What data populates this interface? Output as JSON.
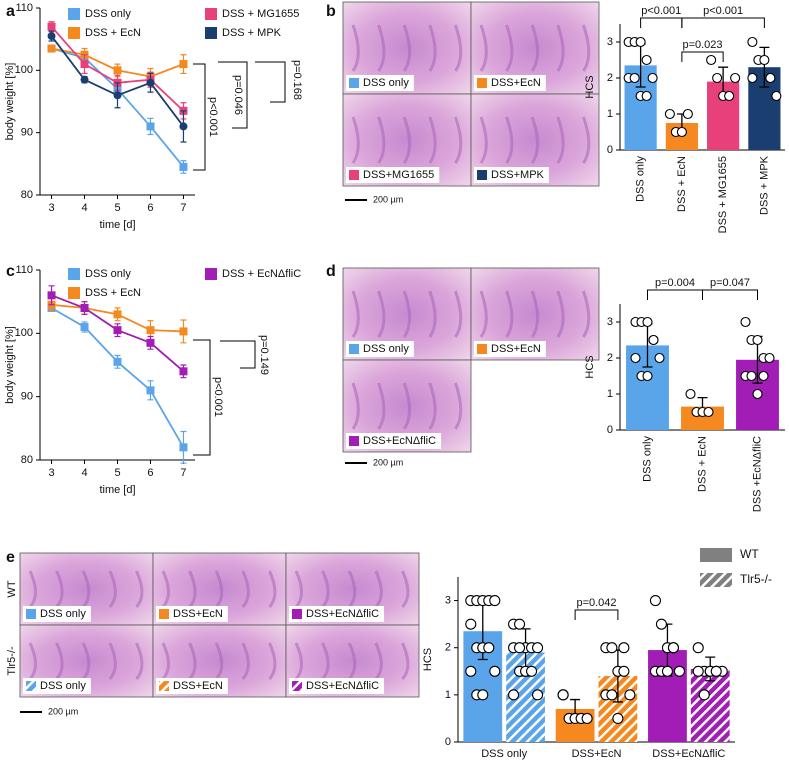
{
  "figure": {
    "panels": [
      "a",
      "b",
      "c",
      "d",
      "e"
    ],
    "micrographs": [
      {
        "tiles": [
          {
            "label": "DSS only",
            "color": "#5aa5ea"
          },
          {
            "label": "DSS+EcN",
            "color": "#f5891f"
          },
          {
            "label": "DSS+MG1655",
            "color": "#e8407a"
          },
          {
            "label": "DSS+MPK",
            "color": "#1a3e6f"
          }
        ],
        "scale": "200 µm"
      },
      {
        "tiles": [
          {
            "label": "DSS only",
            "color": "#5aa5ea"
          },
          {
            "label": "DSS+EcN",
            "color": "#f5891f"
          },
          {
            "label": "DSS+EcNΔfliC",
            "color": "#a11db5"
          }
        ],
        "scale": "200 µm"
      },
      {
        "rows": [
          "WT",
          "Tlr5-/-"
        ],
        "tiles": [
          {
            "label": "DSS only",
            "color": "#5aa5ea"
          },
          {
            "label": "DSS+EcN",
            "color": "#f5891f"
          },
          {
            "label": "DSS+EcNΔfliC",
            "color": "#a11db5"
          },
          {
            "label": "DSS only",
            "color": "#5aa5ea",
            "hatch": true
          },
          {
            "label": "DSS+EcN",
            "color": "#f5891f",
            "hatch": true
          },
          {
            "label": "DSS+EcNΔfliC",
            "color": "#a11db5",
            "hatch": true
          }
        ],
        "scale": "200 µm"
      }
    ]
  },
  "chart_data": [
    {
      "type": "line",
      "xlabel": "time [d]",
      "ylabel": "body weight [%]",
      "x": [
        3,
        4,
        5,
        6,
        7
      ],
      "xlim": [
        2.65,
        7.35
      ],
      "xticks": [
        3,
        4,
        5,
        6,
        7
      ],
      "ylim": [
        80,
        110
      ],
      "yticks": [
        80,
        90,
        100,
        110
      ],
      "series": [
        {
          "name": "DSS only",
          "color": "#5aa5ea",
          "marker": "square",
          "values": [
            103.5,
            102,
            97,
            91,
            84.5
          ],
          "errors": [
            0.5,
            0.8,
            1,
            1.3,
            1
          ]
        },
        {
          "name": "DSS + EcN",
          "color": "#f5891f",
          "marker": "square",
          "values": [
            103.5,
            102.5,
            100,
            99,
            101
          ],
          "errors": [
            0.5,
            1,
            1,
            1.3,
            1.5
          ]
        },
        {
          "name": "DSS + MG1655",
          "color": "#e8407a",
          "marker": "square",
          "values": [
            107,
            101,
            98,
            98.5,
            93.5
          ],
          "errors": [
            0.8,
            1.5,
            1.2,
            1.2,
            1.3
          ]
        },
        {
          "name": "DSS + MPK",
          "color": "#1a3e6f",
          "marker": "circle",
          "values": [
            105.5,
            98.5,
            96,
            98,
            91
          ],
          "errors": [
            0.8,
            0.5,
            2,
            1.5,
            2.5
          ]
        }
      ],
      "annotations": [
        "p<0.001",
        "p=0.046",
        "p=0.168"
      ]
    },
    {
      "type": "bar",
      "ylabel": "HCS",
      "categories": [
        "DSS only",
        "DSS + EcN",
        "DSS + MG1655",
        "DSS + MPK"
      ],
      "ylim": [
        0,
        3.5
      ],
      "yticks": [
        0,
        1,
        2,
        3
      ],
      "series": [
        {
          "colors": [
            "#5aa5ea",
            "#f5891f",
            "#e8407a",
            "#1a3e6f"
          ],
          "values": [
            2.35,
            0.75,
            1.9,
            2.3
          ],
          "errors": [
            0.6,
            0.25,
            0.4,
            0.55
          ],
          "points": [
            [
              3,
              3,
              3,
              2.5,
              2,
              2,
              2,
              1.5,
              1.5
            ],
            [
              1,
              0.5,
              0.5,
              1
            ],
            [
              2.5,
              2,
              1.5,
              1.5,
              2
            ],
            [
              3,
              2.5,
              2.5,
              2,
              1.5,
              2
            ]
          ]
        }
      ],
      "annotations": [
        "p<0.001",
        "p=0.023",
        "p<0.001"
      ]
    },
    {
      "type": "line",
      "xlabel": "time [d]",
      "ylabel": "body weight [%]",
      "x": [
        3,
        4,
        5,
        6,
        7
      ],
      "xlim": [
        2.65,
        7.35
      ],
      "xticks": [
        3,
        4,
        5,
        6,
        7
      ],
      "ylim": [
        80,
        110
      ],
      "yticks": [
        80,
        90,
        100,
        110
      ],
      "series": [
        {
          "name": "DSS only",
          "color": "#5aa5ea",
          "marker": "square",
          "values": [
            104,
            101,
            95.5,
            91,
            82
          ],
          "errors": [
            0.5,
            0.8,
            1,
            1.5,
            2.5
          ]
        },
        {
          "name": "DSS + EcN",
          "color": "#f5891f",
          "marker": "square",
          "values": [
            104.5,
            104,
            103,
            100.5,
            100.3
          ],
          "errors": [
            1,
            1,
            1,
            1.5,
            1.8
          ]
        },
        {
          "name": "DSS + EcNΔfliC",
          "color": "#a11db5",
          "marker": "square",
          "values": [
            106,
            104,
            100.5,
            98.5,
            94
          ],
          "errors": [
            1.5,
            1,
            1,
            1,
            1
          ]
        }
      ],
      "annotations": [
        "p<0.001",
        "p=0.149"
      ]
    },
    {
      "type": "bar",
      "ylabel": "HCS",
      "categories": [
        "DSS only",
        "DSS + EcN",
        "DSS +EcNΔfliC"
      ],
      "ylim": [
        0,
        3.5
      ],
      "yticks": [
        0,
        1,
        2,
        3
      ],
      "series": [
        {
          "colors": [
            "#5aa5ea",
            "#f5891f",
            "#a11db5"
          ],
          "values": [
            2.35,
            0.65,
            1.95
          ],
          "errors": [
            0.6,
            0.25,
            0.65
          ],
          "points": [
            [
              3,
              3,
              3,
              2.5,
              2,
              2,
              1.5,
              1.5,
              2.5
            ],
            [
              1,
              0.5,
              0.5,
              0.5
            ],
            [
              3,
              2.5,
              2.5,
              2,
              2,
              1.5,
              1.5,
              1,
              1.5
            ]
          ]
        }
      ],
      "annotations": [
        "p=0.004",
        "p=0.047"
      ]
    },
    {
      "type": "grouped-bar",
      "ylabel": "HCS",
      "categories": [
        "DSS only",
        "DSS+EcN",
        "DSS+EcNΔfliC"
      ],
      "colors": [
        "#5aa5ea",
        "#f5891f",
        "#a11db5"
      ],
      "ylim": [
        0,
        3.5
      ],
      "yticks": [
        0,
        1,
        2,
        3
      ],
      "series": [
        {
          "name": "WT",
          "color": "#808080",
          "hatch": false,
          "values": [
            2.35,
            0.7,
            1.95
          ],
          "errors": [
            0.6,
            0.2,
            0.55
          ],
          "points": [
            [
              3,
              3,
              3,
              3,
              3,
              2.5,
              2,
              2,
              2,
              1.5,
              1.5,
              1,
              1
            ],
            [
              1,
              0.5,
              0.5,
              0.5,
              0.5,
              1
            ],
            [
              3,
              2.5,
              2,
              2,
              1.5,
              1.5,
              1.5,
              1.5,
              2
            ]
          ]
        },
        {
          "name": "Tlr5-/-",
          "color": "#808080",
          "hatch": true,
          "values": [
            1.9,
            1.4,
            1.55
          ],
          "errors": [
            0.5,
            0.55,
            0.25
          ],
          "points": [
            [
              2.5,
              2.5,
              2,
              2,
              2,
              2,
              1.5,
              1.5,
              1.5,
              1,
              1,
              2
            ],
            [
              2,
              2,
              1.5,
              1.5,
              1,
              1,
              1,
              0.5,
              2
            ],
            [
              2,
              1.5,
              1.5,
              1.5,
              1.5,
              1.5,
              1,
              1.5,
              1.5
            ]
          ]
        }
      ],
      "annotations": [
        "p=0.042"
      ]
    }
  ]
}
